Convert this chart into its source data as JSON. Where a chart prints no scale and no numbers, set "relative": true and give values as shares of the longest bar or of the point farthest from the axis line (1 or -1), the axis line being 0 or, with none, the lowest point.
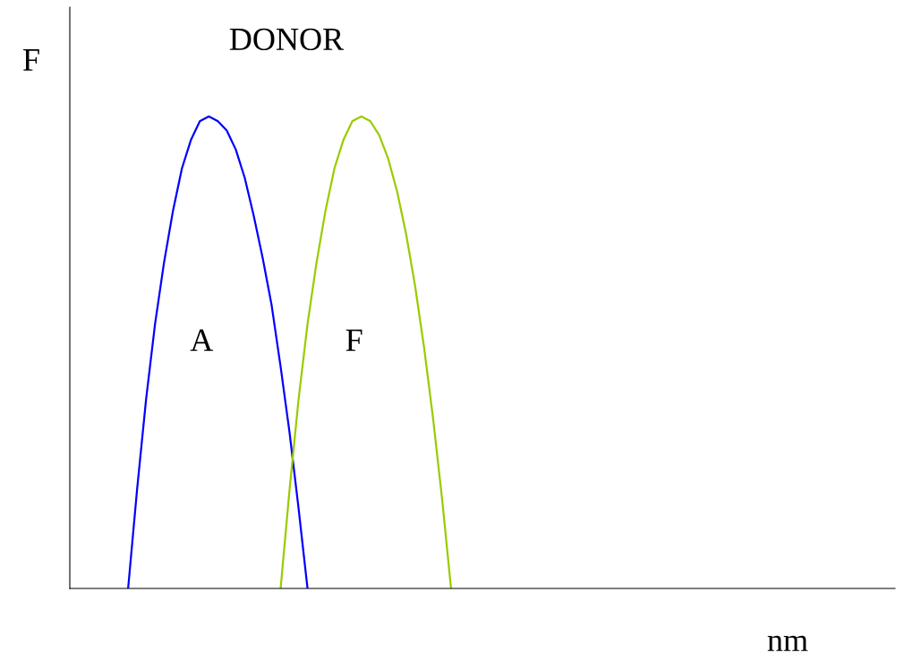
{
  "chart_data": {
    "type": "line",
    "relative": true,
    "title": "DONOR",
    "xlabel": "nm",
    "ylabel": "F",
    "grid": false,
    "legend": false,
    "marker": "none",
    "line_style": "solid",
    "categories": [
      null,
      null,
      null,
      null,
      null,
      null,
      null,
      null,
      null,
      null,
      null,
      null,
      null,
      null,
      null,
      null,
      null,
      null,
      null,
      null,
      null,
      null,
      null,
      null,
      null,
      null,
      null,
      null,
      null,
      null,
      null,
      null,
      null,
      null,
      null,
      null,
      null,
      null,
      null,
      null,
      null,
      null,
      null,
      null,
      null,
      null,
      null,
      null,
      null,
      null,
      null,
      null,
      null,
      null,
      null,
      null,
      null,
      null,
      null,
      null,
      null,
      null,
      null,
      null,
      null,
      null,
      null,
      null,
      null,
      null,
      null,
      null,
      null,
      null,
      null,
      null,
      null,
      null,
      null,
      null,
      null,
      null,
      null,
      null,
      null,
      null,
      null,
      null,
      null,
      null,
      null,
      null
    ],
    "series": [
      {
        "name": "A",
        "color": "#0000ff",
        "values": [
          null,
          null,
          null,
          null,
          null,
          null,
          0,
          0.21,
          0.4,
          0.56,
          0.69,
          0.8,
          0.89,
          0.95,
          0.99,
          1,
          0.99,
          0.97,
          0.93,
          0.87,
          0.79,
          0.7,
          0.6,
          0.47,
          0.33,
          0.17,
          0,
          null,
          null,
          null,
          null,
          null,
          null,
          null,
          null,
          null,
          null,
          null,
          null,
          null,
          null,
          null,
          null,
          null,
          null,
          null,
          null,
          null,
          null,
          null,
          null,
          null,
          null,
          null,
          null,
          null,
          null,
          null,
          null,
          null,
          null,
          null,
          null,
          null,
          null,
          null,
          null,
          null,
          null,
          null,
          null,
          null,
          null,
          null,
          null,
          null,
          null,
          null,
          null,
          null,
          null,
          null,
          null,
          null,
          null,
          null,
          null,
          null,
          null,
          null,
          null,
          null
        ]
      },
      {
        "name": "F",
        "color": "#99cc00",
        "values": [
          null,
          null,
          null,
          null,
          null,
          null,
          null,
          null,
          null,
          null,
          null,
          null,
          null,
          null,
          null,
          null,
          null,
          null,
          null,
          null,
          null,
          null,
          null,
          0,
          0.21,
          0.4,
          0.56,
          0.69,
          0.8,
          0.89,
          0.95,
          0.99,
          1,
          0.99,
          0.96,
          0.91,
          0.84,
          0.75,
          0.64,
          0.51,
          0.36,
          0.19,
          0,
          null,
          null,
          null,
          null,
          null,
          null,
          null,
          null,
          null,
          null,
          null,
          null,
          null,
          null,
          null,
          null,
          null,
          null,
          null,
          null,
          null,
          null,
          null,
          null,
          null,
          null,
          null,
          null,
          null,
          null,
          null,
          null,
          null,
          null,
          null,
          null,
          null,
          null,
          null,
          null,
          null,
          null,
          null,
          null,
          null,
          null,
          null,
          null,
          null
        ]
      }
    ]
  }
}
